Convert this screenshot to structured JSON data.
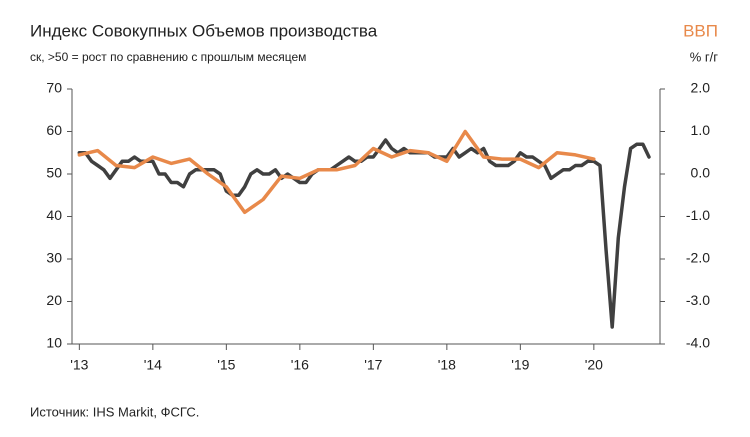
{
  "chart_data": {
    "type": "line",
    "title": "Индекс Совокупных Объемов производства",
    "subtitle": "ск, >50 = рост по сравнению с прошлым месяцем",
    "y2_title": "ВВП",
    "y2_unit": "% г/г",
    "source": "Источник: IHS Markit, ФСГС.",
    "xlim": [
      2012.9,
      2020.9
    ],
    "xticks": [
      {
        "value": 2013,
        "label": "'13"
      },
      {
        "value": 2014,
        "label": "'14"
      },
      {
        "value": 2015,
        "label": "'15"
      },
      {
        "value": 2016,
        "label": "'16"
      },
      {
        "value": 2017,
        "label": "'17"
      },
      {
        "value": 2018,
        "label": "'18"
      },
      {
        "value": 2019,
        "label": "'19"
      },
      {
        "value": 2020,
        "label": "'20"
      }
    ],
    "ylim": [
      10,
      70
    ],
    "yticks": [
      70,
      60,
      50,
      40,
      30,
      20,
      10
    ],
    "y2lim": [
      -4,
      2
    ],
    "y2ticks": [
      {
        "value": 2,
        "label": "2.0"
      },
      {
        "value": 1,
        "label": "1.0"
      },
      {
        "value": 0,
        "label": "0.0"
      },
      {
        "value": -1,
        "label": "-1.0"
      },
      {
        "value": -2,
        "label": "-2.0"
      },
      {
        "value": -3,
        "label": "-3.0"
      },
      {
        "value": -4,
        "label": "-4.0"
      }
    ],
    "grid": false,
    "series": [
      {
        "color": "#404040",
        "axis": "y",
        "x": [
          2013.0,
          2013.083,
          2013.167,
          2013.25,
          2013.333,
          2013.417,
          2013.5,
          2013.583,
          2013.667,
          2013.75,
          2013.833,
          2013.917,
          2014.0,
          2014.083,
          2014.167,
          2014.25,
          2014.333,
          2014.417,
          2014.5,
          2014.583,
          2014.667,
          2014.75,
          2014.833,
          2014.917,
          2015.0,
          2015.083,
          2015.167,
          2015.25,
          2015.333,
          2015.417,
          2015.5,
          2015.583,
          2015.667,
          2015.75,
          2015.833,
          2015.917,
          2016.0,
          2016.083,
          2016.167,
          2016.25,
          2016.333,
          2016.417,
          2016.5,
          2016.583,
          2016.667,
          2016.75,
          2016.833,
          2016.917,
          2017.0,
          2017.083,
          2017.167,
          2017.25,
          2017.333,
          2017.417,
          2017.5,
          2017.583,
          2017.667,
          2017.75,
          2017.833,
          2017.917,
          2018.0,
          2018.083,
          2018.167,
          2018.25,
          2018.333,
          2018.417,
          2018.5,
          2018.583,
          2018.667,
          2018.75,
          2018.833,
          2018.917,
          2019.0,
          2019.083,
          2019.167,
          2019.25,
          2019.333,
          2019.417,
          2019.5,
          2019.583,
          2019.667,
          2019.75,
          2019.833,
          2019.917,
          2020.0,
          2020.083,
          2020.167,
          2020.25,
          2020.333,
          2020.417,
          2020.5,
          2020.583,
          2020.667,
          2020.75
        ],
        "values": [
          55,
          55,
          53,
          52,
          51,
          49,
          51,
          53,
          53,
          54,
          53,
          53,
          53,
          50,
          50,
          48,
          48,
          47,
          50,
          51,
          51,
          51,
          51,
          50,
          46,
          45,
          45,
          47,
          50,
          51,
          50,
          50,
          51,
          49,
          50,
          49,
          48,
          48,
          50,
          51,
          51,
          51,
          52,
          53,
          54,
          53,
          53,
          54,
          54,
          56,
          58,
          56,
          55,
          56,
          55,
          55,
          55,
          55,
          54,
          54,
          54,
          56,
          54,
          55,
          56,
          55,
          56,
          53,
          52,
          52,
          52,
          53,
          55,
          54,
          54,
          53,
          52,
          49,
          50,
          51,
          51,
          52,
          52,
          53,
          53,
          52,
          32,
          14,
          35,
          47,
          56,
          57,
          57,
          54
        ]
      },
      {
        "color": "#e8894a",
        "axis": "y2",
        "x": [
          2013.0,
          2013.25,
          2013.5,
          2013.75,
          2014.0,
          2014.25,
          2014.5,
          2014.75,
          2015.0,
          2015.25,
          2015.5,
          2015.75,
          2016.0,
          2016.25,
          2016.5,
          2016.75,
          2017.0,
          2017.25,
          2017.5,
          2017.75,
          2018.0,
          2018.25,
          2018.5,
          2018.75,
          2019.0,
          2019.25,
          2019.5,
          2019.75,
          2020.0
        ],
        "values": [
          0.45,
          0.55,
          0.2,
          0.15,
          0.4,
          0.25,
          0.35,
          0.0,
          -0.3,
          -0.9,
          -0.6,
          -0.05,
          -0.1,
          0.1,
          0.1,
          0.2,
          0.6,
          0.4,
          0.55,
          0.5,
          0.3,
          1.0,
          0.4,
          0.35,
          0.35,
          0.15,
          0.5,
          0.45,
          0.35
        ]
      }
    ]
  }
}
